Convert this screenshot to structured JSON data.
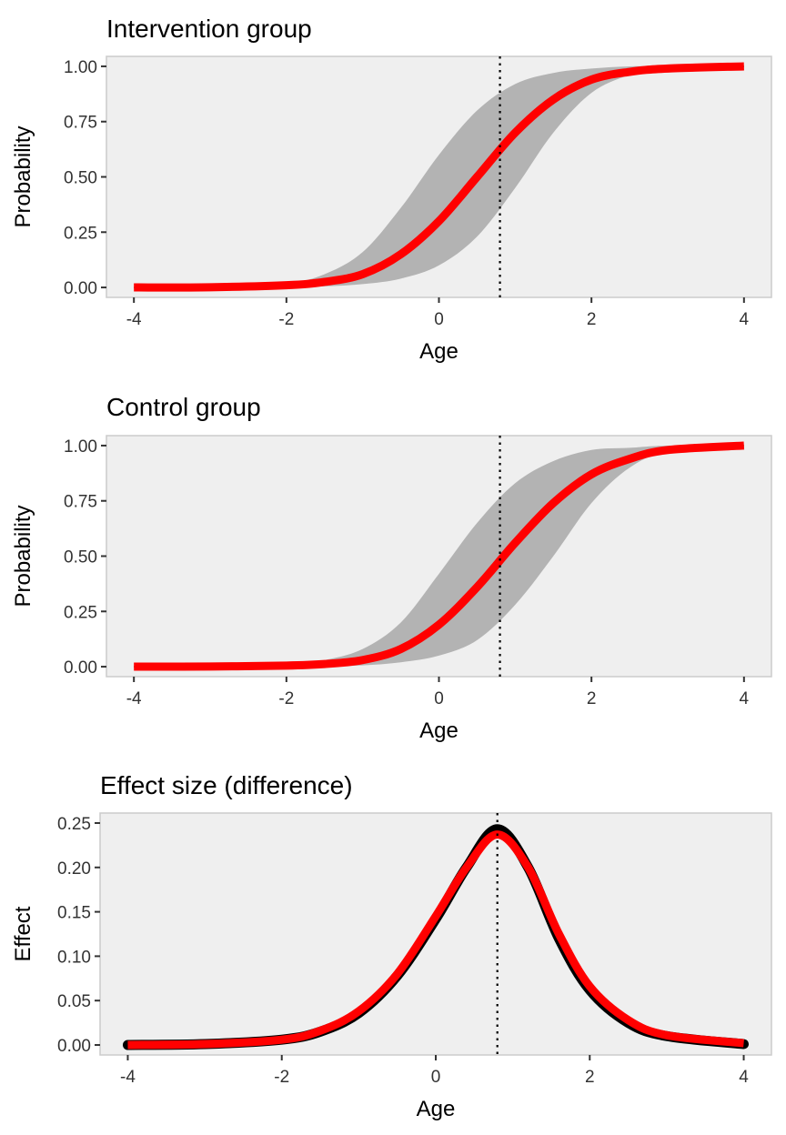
{
  "colors": {
    "panel_bg": "#efefef",
    "panel_border": "#cccccc",
    "ribbon": "#b3b3b3",
    "draws": "#000000",
    "mean_line": "#ff0000",
    "vline": "#000000"
  },
  "chart_data": [
    {
      "type": "line",
      "title": "Intervention group",
      "xlabel": "Age",
      "ylabel": "Probability",
      "xlim": [
        -4,
        4
      ],
      "ylim": [
        0,
        1
      ],
      "x_ticks": [
        -4,
        -2,
        0,
        2,
        4
      ],
      "x_tick_labels": [
        "-4",
        "-2",
        "0",
        "2",
        "4"
      ],
      "y_ticks": [
        0,
        0.25,
        0.5,
        0.75,
        1
      ],
      "y_tick_labels": [
        "0.00",
        "0.25",
        "0.50",
        "0.75",
        "1.00"
      ],
      "vline_x": 0.8,
      "grid": false,
      "series": [
        {
          "role": "band",
          "x": [
            -4,
            -3,
            -2,
            -1.5,
            -1,
            -0.5,
            0,
            0.5,
            1,
            1.5,
            2,
            2.5,
            3,
            4
          ],
          "lower": [
            0,
            0,
            0.002,
            0.005,
            0.015,
            0.04,
            0.1,
            0.23,
            0.45,
            0.7,
            0.88,
            0.96,
            0.99,
            1
          ],
          "upper": [
            0,
            0.002,
            0.02,
            0.06,
            0.16,
            0.36,
            0.6,
            0.8,
            0.92,
            0.97,
            0.99,
            1,
            1,
            1
          ]
        },
        {
          "role": "mean",
          "x": [
            -4,
            -3,
            -2,
            -1.5,
            -1,
            -0.5,
            0,
            0.5,
            1,
            1.5,
            2,
            2.5,
            3,
            4
          ],
          "values": [
            0,
            0.001,
            0.01,
            0.025,
            0.06,
            0.15,
            0.3,
            0.5,
            0.7,
            0.85,
            0.94,
            0.975,
            0.99,
            1
          ]
        }
      ]
    },
    {
      "type": "line",
      "title": "Control group",
      "xlabel": "Age",
      "ylabel": "Probability",
      "xlim": [
        -4,
        4
      ],
      "ylim": [
        0,
        1
      ],
      "x_ticks": [
        -4,
        -2,
        0,
        2,
        4
      ],
      "x_tick_labels": [
        "-4",
        "-2",
        "0",
        "2",
        "4"
      ],
      "y_ticks": [
        0,
        0.25,
        0.5,
        0.75,
        1
      ],
      "y_tick_labels": [
        "0.00",
        "0.25",
        "0.50",
        "0.75",
        "1.00"
      ],
      "vline_x": 0.8,
      "grid": false,
      "series": [
        {
          "role": "band",
          "x": [
            -4,
            -3,
            -2,
            -1.5,
            -1,
            -0.5,
            0,
            0.5,
            1,
            1.5,
            2,
            2.5,
            3,
            4
          ],
          "lower": [
            0,
            0,
            0,
            0.002,
            0.006,
            0.02,
            0.05,
            0.12,
            0.28,
            0.5,
            0.74,
            0.9,
            0.97,
            1
          ],
          "upper": [
            0,
            0.001,
            0.01,
            0.03,
            0.08,
            0.2,
            0.42,
            0.65,
            0.83,
            0.93,
            0.98,
            0.99,
            1,
            1
          ]
        },
        {
          "role": "mean",
          "x": [
            -4,
            -3,
            -2,
            -1.5,
            -1,
            -0.5,
            0,
            0.5,
            1,
            1.5,
            2,
            2.5,
            3,
            4
          ],
          "values": [
            0,
            0.001,
            0.005,
            0.012,
            0.03,
            0.08,
            0.19,
            0.36,
            0.56,
            0.74,
            0.87,
            0.94,
            0.98,
            1
          ]
        }
      ]
    },
    {
      "type": "line",
      "title": "Effect size (difference)",
      "xlabel": "Age",
      "ylabel": "Effect",
      "xlim": [
        -4,
        4
      ],
      "ylim": [
        0,
        0.25
      ],
      "x_ticks": [
        -4,
        -2,
        0,
        2,
        4
      ],
      "x_tick_labels": [
        "-4",
        "-2",
        "0",
        "2",
        "4"
      ],
      "y_ticks": [
        0,
        0.05,
        0.1,
        0.15,
        0.2,
        0.25
      ],
      "y_tick_labels": [
        "0.00",
        "0.05",
        "0.10",
        "0.15",
        "0.20",
        "0.25"
      ],
      "vline_x": 0.8,
      "grid": false,
      "series": [
        {
          "role": "draws",
          "x": [
            -4,
            -3,
            -2,
            -1.5,
            -1,
            -0.5,
            0,
            0.4,
            0.8,
            1.2,
            1.6,
            2,
            2.5,
            3,
            4
          ],
          "values": [
            0,
            0.001,
            0.006,
            0.015,
            0.036,
            0.078,
            0.142,
            0.2,
            0.243,
            0.2,
            0.12,
            0.062,
            0.025,
            0.01,
            0.001
          ]
        },
        {
          "role": "mean",
          "x": [
            -4,
            -3,
            -2,
            -1.5,
            -1,
            -0.5,
            0,
            0.4,
            0.8,
            1.2,
            1.6,
            2,
            2.5,
            3,
            4
          ],
          "values": [
            0,
            0.001,
            0.006,
            0.016,
            0.038,
            0.08,
            0.145,
            0.2,
            0.237,
            0.2,
            0.125,
            0.066,
            0.028,
            0.011,
            0.002
          ]
        }
      ]
    }
  ]
}
